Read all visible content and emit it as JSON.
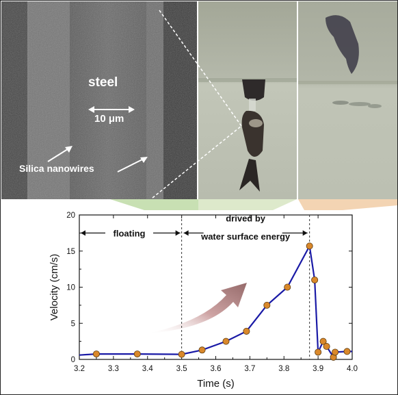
{
  "sem": {
    "material_label": "steel",
    "scale_label": "10 μm",
    "nanowire_label": "Silica nanowires"
  },
  "chart_data": {
    "type": "line",
    "xlabel": "Time (s)",
    "ylabel": "Velocity (cm/s)",
    "xlim": [
      3.2,
      4.0
    ],
    "ylim": [
      0,
      20
    ],
    "xticks": [
      "3.2",
      "3.3",
      "3.4",
      "3.5",
      "3.6",
      "3.7",
      "3.8",
      "3.9",
      "4.0"
    ],
    "yticks": [
      "0",
      "5",
      "10",
      "15",
      "20"
    ],
    "grid": false,
    "line_color": "#1a1aa6",
    "marker_color": "#d9882b",
    "series": [
      {
        "x": [
          3.2,
          3.25,
          3.37,
          3.5,
          3.56,
          3.63,
          3.69,
          3.75,
          3.81,
          3.875,
          3.89,
          3.9,
          3.915,
          3.925,
          3.945,
          3.95,
          3.985,
          4.0
        ],
        "y": [
          0.6,
          0.75,
          0.75,
          0.7,
          1.3,
          2.5,
          3.9,
          7.5,
          10.0,
          15.7,
          11.0,
          1.0,
          2.5,
          1.8,
          0.3,
          1.0,
          1.1,
          1.1
        ],
        "markers": [
          false,
          true,
          true,
          true,
          true,
          true,
          true,
          true,
          true,
          true,
          true,
          true,
          true,
          true,
          true,
          true,
          true,
          false
        ]
      }
    ],
    "annotations": {
      "floating": "floating",
      "drived_line1": "drived by",
      "drived_line2": "water surface energy"
    },
    "vlines": [
      3.5,
      3.875
    ]
  }
}
